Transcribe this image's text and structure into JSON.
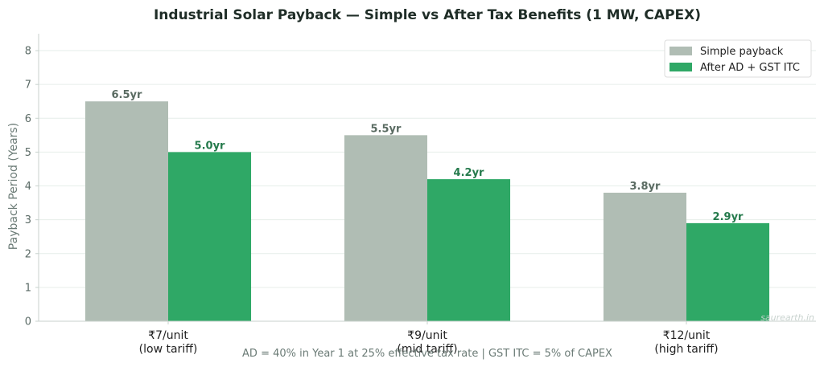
{
  "chart_data": {
    "type": "bar",
    "title": "Industrial Solar Payback — Simple vs After Tax Benefits (1 MW, CAPEX)",
    "xlabel": "",
    "ylabel": "Payback Period (Years)",
    "ylim": [
      0,
      8.5
    ],
    "yticks": [
      0,
      1,
      2,
      3,
      4,
      5,
      6,
      7,
      8
    ],
    "categories": [
      [
        "₹7/unit",
        "(low tariff)"
      ],
      [
        "₹9/unit",
        "(mid tariff)"
      ],
      [
        "₹12/unit",
        "(high tariff)"
      ]
    ],
    "series": [
      {
        "name": "Simple payback",
        "values": [
          6.5,
          5.5,
          3.8
        ],
        "labels": [
          "6.5yr",
          "5.5yr",
          "3.8yr"
        ],
        "color": "#b0bdb4",
        "label_color": "#5a6b62"
      },
      {
        "name": "After AD + GST ITC",
        "values": [
          5.0,
          4.2,
          2.9
        ],
        "labels": [
          "5.0yr",
          "4.2yr",
          "2.9yr"
        ],
        "color": "#2fa866",
        "label_color": "#257a4c"
      }
    ],
    "grid": true,
    "legend": "top-right",
    "annotation": "AD = 40% in Year 1 at 25% effective tax rate  |  GST ITC = 5% of CAPEX"
  },
  "watermark": "saurearth.in",
  "colors": {
    "grid": "#e6eeea",
    "axis": "#c8d2cd"
  }
}
